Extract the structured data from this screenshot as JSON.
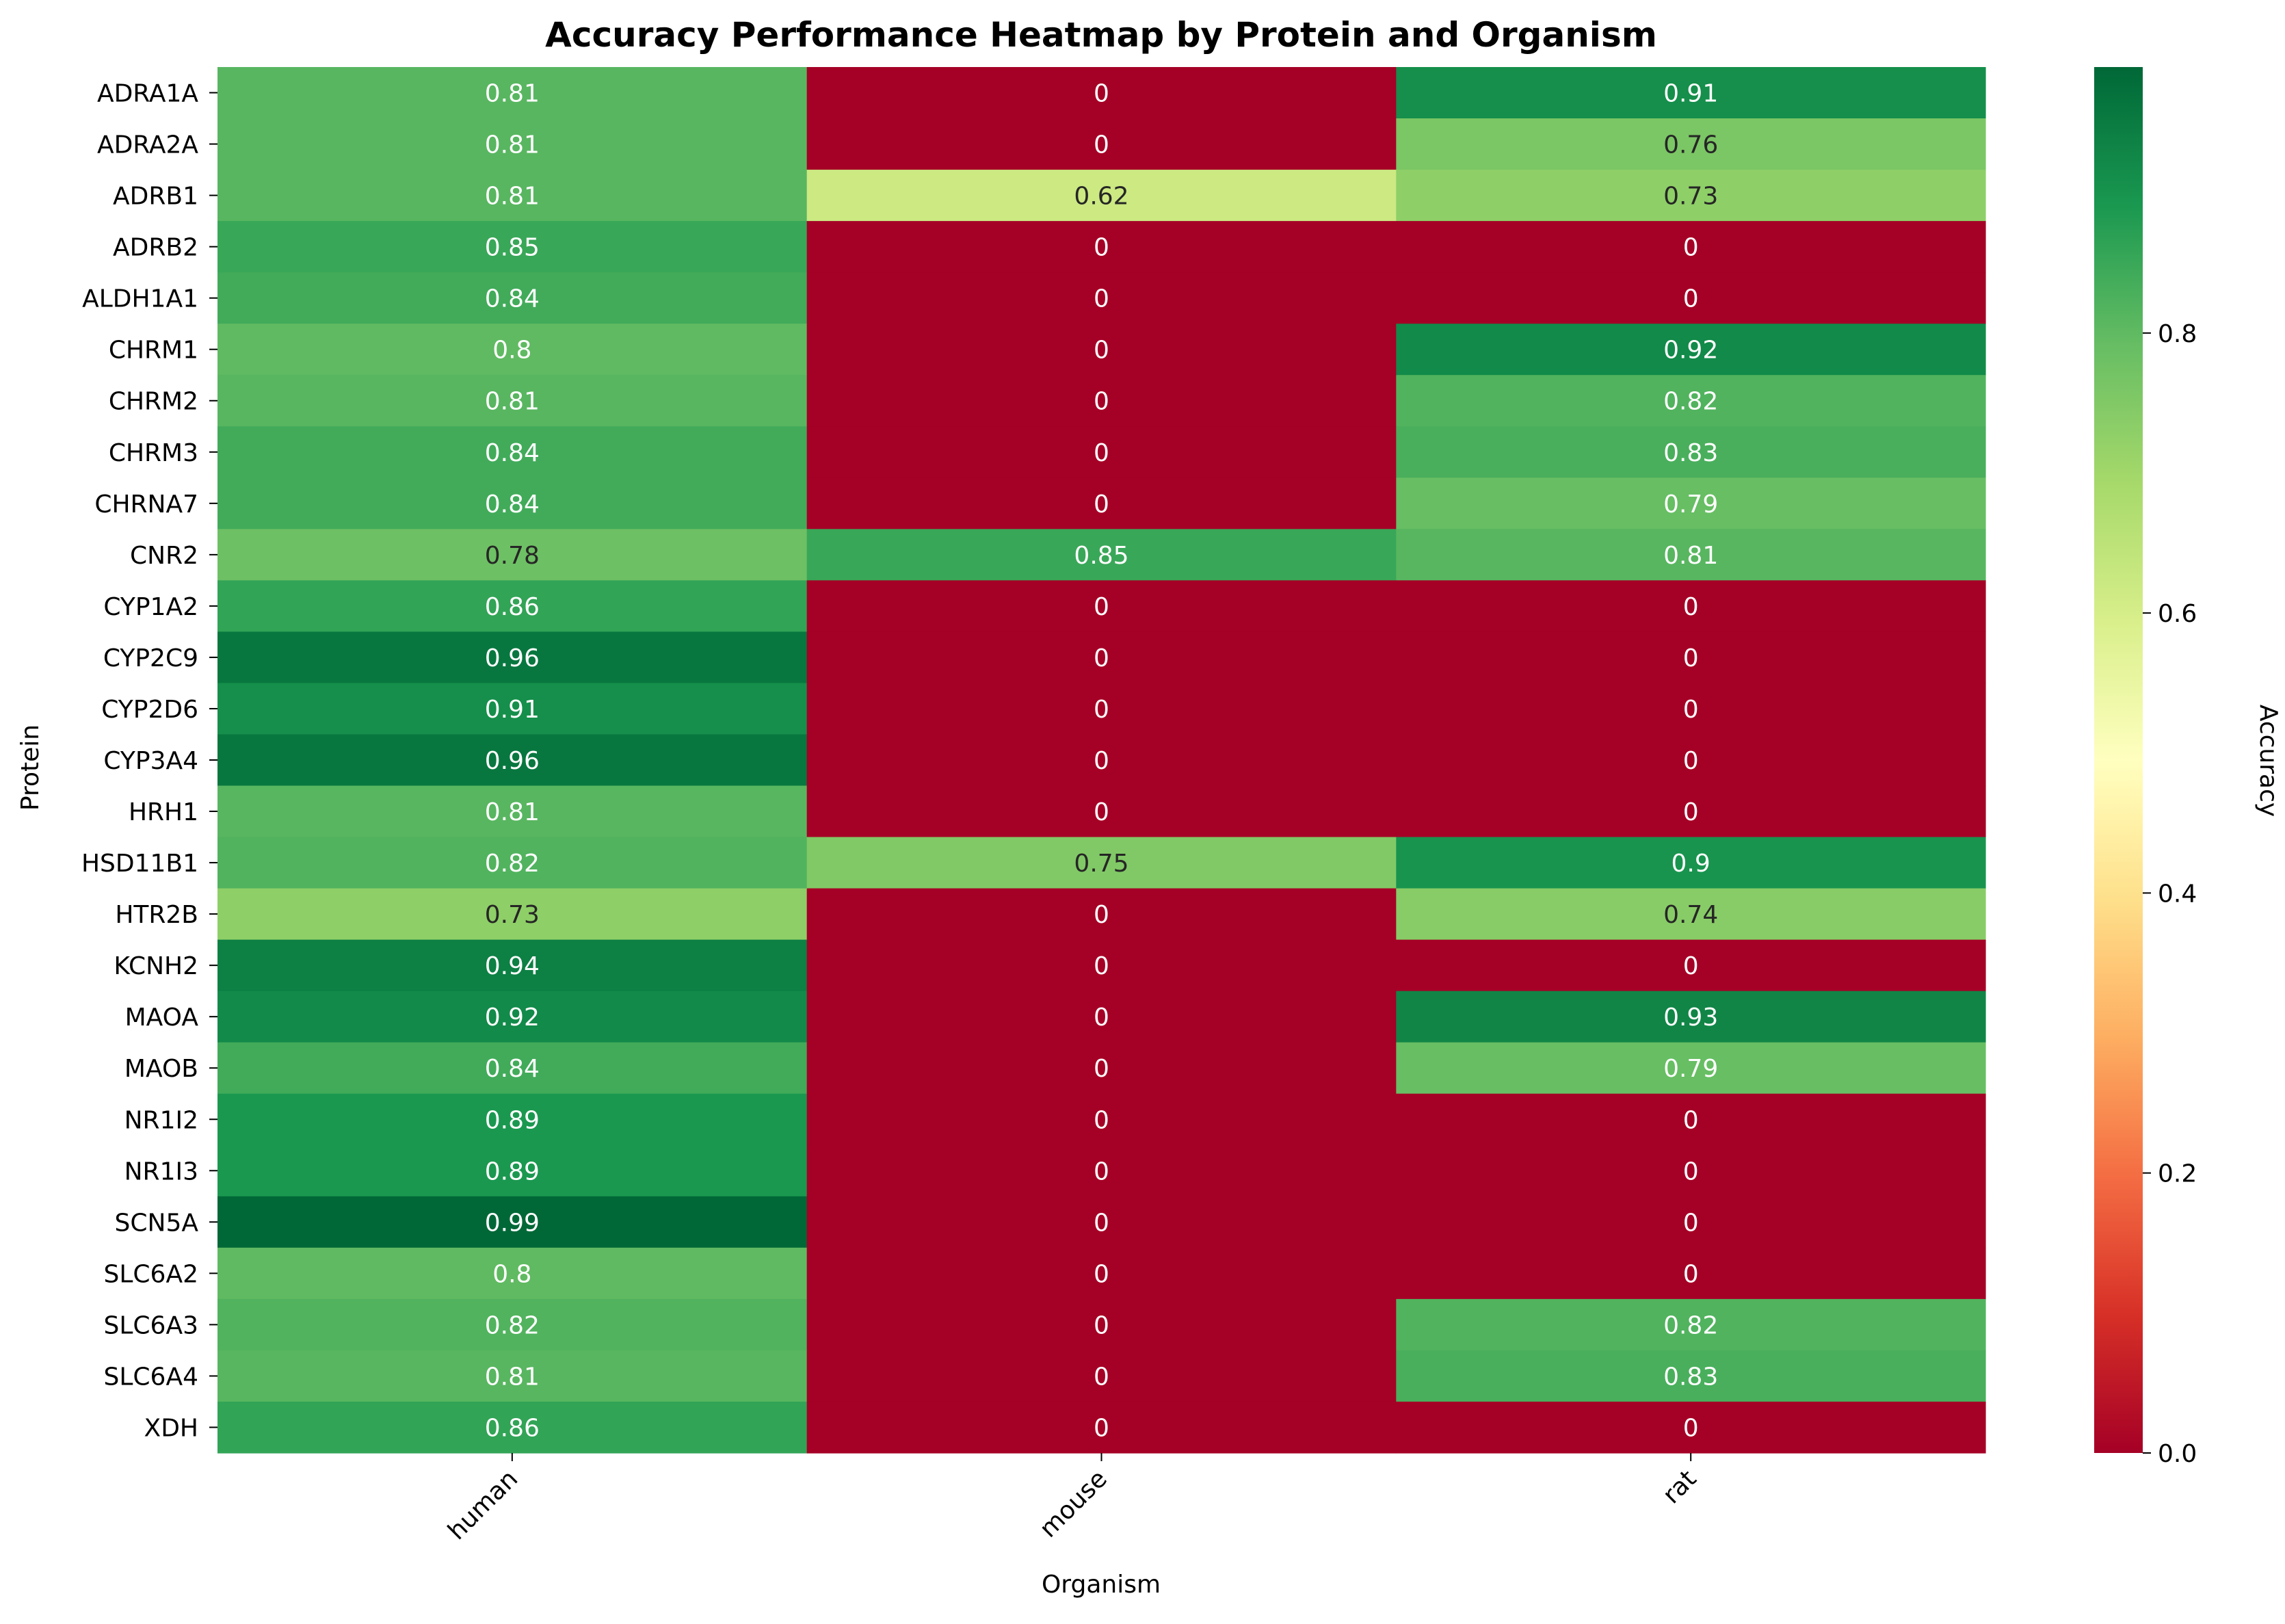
{
  "chart_data": {
    "type": "heatmap",
    "title": "Accuracy Performance Heatmap by Protein and Organism",
    "xlabel": "Organism",
    "ylabel": "Protein",
    "x_categories": [
      "human",
      "mouse",
      "rat"
    ],
    "y_categories": [
      "ADRA1A",
      "ADRA2A",
      "ADRB1",
      "ADRB2",
      "ALDH1A1",
      "CHRM1",
      "CHRM2",
      "CHRM3",
      "CHRNA7",
      "CNR2",
      "CYP1A2",
      "CYP2C9",
      "CYP2D6",
      "CYP3A4",
      "HRH1",
      "HSD11B1",
      "HTR2B",
      "KCNH2",
      "MAOA",
      "MAOB",
      "NR1I2",
      "NR1I3",
      "SCN5A",
      "SLC6A2",
      "SLC6A3",
      "SLC6A4",
      "XDH"
    ],
    "values": [
      [
        0.81,
        0,
        0.91
      ],
      [
        0.81,
        0,
        0.76
      ],
      [
        0.81,
        0.62,
        0.73
      ],
      [
        0.85,
        0,
        0
      ],
      [
        0.84,
        0,
        0
      ],
      [
        0.8,
        0,
        0.92
      ],
      [
        0.81,
        0,
        0.82
      ],
      [
        0.84,
        0,
        0.83
      ],
      [
        0.84,
        0,
        0.79
      ],
      [
        0.78,
        0.85,
        0.81
      ],
      [
        0.86,
        0,
        0
      ],
      [
        0.96,
        0,
        0
      ],
      [
        0.91,
        0,
        0
      ],
      [
        0.96,
        0,
        0
      ],
      [
        0.81,
        0,
        0
      ],
      [
        0.82,
        0.75,
        0.9
      ],
      [
        0.73,
        0,
        0.74
      ],
      [
        0.94,
        0,
        0
      ],
      [
        0.92,
        0,
        0.93
      ],
      [
        0.84,
        0,
        0.79
      ],
      [
        0.89,
        0,
        0
      ],
      [
        0.89,
        0,
        0
      ],
      [
        0.99,
        0,
        0
      ],
      [
        0.8,
        0,
        0
      ],
      [
        0.82,
        0,
        0.82
      ],
      [
        0.81,
        0,
        0.83
      ],
      [
        0.86,
        0,
        0
      ]
    ],
    "colorbar": {
      "label": "Accuracy",
      "range": [
        0,
        0.99
      ],
      "ticks": [
        0.0,
        0.2,
        0.4,
        0.6,
        0.8
      ],
      "tick_labels": [
        "0.0",
        "0.2",
        "0.4",
        "0.6",
        "0.8"
      ],
      "colormap": "RdYlGn"
    },
    "annotated": true,
    "grid": false
  }
}
